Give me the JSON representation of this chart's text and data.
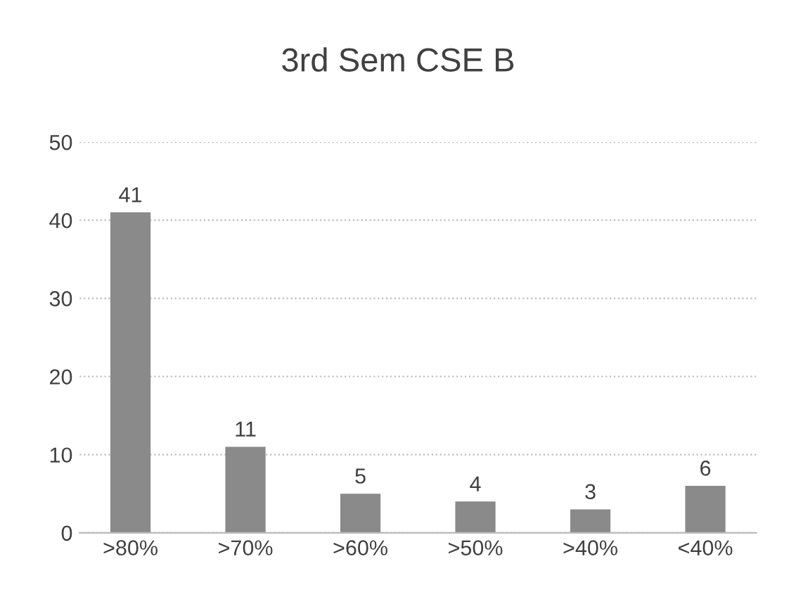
{
  "chart_data": {
    "type": "bar",
    "title": "3rd Sem CSE B",
    "categories": [
      ">80%",
      ">70%",
      ">60%",
      ">50%",
      ">40%",
      "<40%"
    ],
    "values": [
      41,
      11,
      5,
      4,
      3,
      6
    ],
    "color": "#8a8a8a",
    "ylim": [
      0,
      50
    ],
    "yticks": [
      0,
      10,
      20,
      30,
      40,
      50
    ],
    "grid": "y",
    "data_labels": true
  }
}
